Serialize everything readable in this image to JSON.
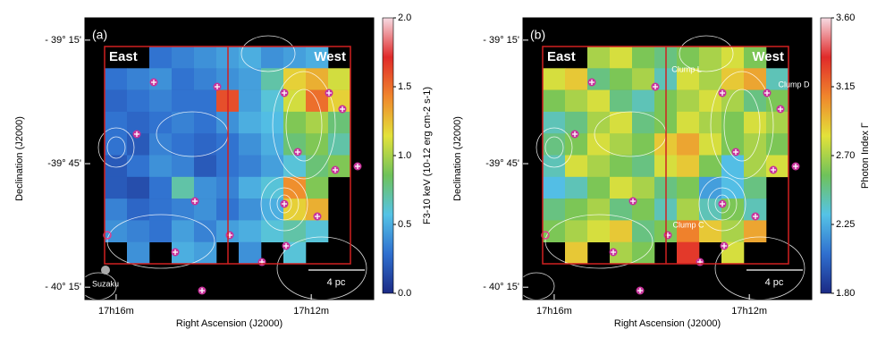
{
  "chart_data": [
    {
      "type": "heatmap",
      "panel_label": "(a)",
      "regions": [
        "East",
        "West"
      ],
      "scale_label": "4 pc",
      "annotations": [
        "Suzaku"
      ],
      "xlabel": "Right Ascension (J2000)",
      "ylabel": "Declination (J2000)",
      "colorbar_label": "F3-10 keV (10-12 erg cm-2 s-1)",
      "xlim": [
        16.64,
        10.72
      ],
      "xticks": [
        {
          "value": 16,
          "label": "17h16m"
        },
        {
          "value": 12,
          "label": "17h12m"
        }
      ],
      "ylim": [
        -39.16,
        -40.3
      ],
      "yticks": [
        {
          "value": -39.25,
          "label": "- 39° 15'"
        },
        {
          "value": -39.75,
          "label": "-39° 45'"
        },
        {
          "value": -40.25,
          "label": "- 40° 15'"
        }
      ],
      "clim": [
        0.0,
        2.0
      ],
      "cticks": [
        {
          "value": 0.0,
          "label": "0.0"
        },
        {
          "value": 0.5,
          "label": "0.5"
        },
        {
          "value": 1.0,
          "label": "1.0"
        },
        {
          "value": 1.5,
          "label": "1.5"
        },
        {
          "value": 2.0,
          "label": "2.0"
        }
      ],
      "colormap": [
        "#1b2a85",
        "#2f6fcf",
        "#55c3e6",
        "#6fc25a",
        "#e3e23a",
        "#f0862c",
        "#e02a2a",
        "#f6dbe3"
      ],
      "values": [
        [
          null,
          null,
          0.3,
          0.35,
          0.4,
          0.45,
          0.5,
          0.4,
          0.45,
          0.5,
          null
        ],
        [
          0.3,
          0.35,
          0.4,
          0.3,
          0.35,
          0.4,
          0.45,
          0.7,
          1.2,
          1.3,
          1.1
        ],
        [
          0.25,
          0.3,
          0.35,
          0.3,
          0.3,
          1.6,
          0.45,
          0.6,
          1.1,
          1.5,
          1.2
        ],
        [
          0.3,
          0.25,
          0.3,
          0.35,
          0.3,
          0.4,
          0.5,
          0.55,
          0.9,
          1.0,
          0.8
        ],
        [
          0.3,
          0.2,
          0.35,
          0.3,
          0.25,
          0.3,
          0.4,
          0.5,
          0.8,
          0.9,
          0.7
        ],
        [
          0.2,
          0.3,
          0.4,
          0.35,
          0.2,
          0.3,
          0.35,
          0.45,
          0.6,
          0.8,
          0.9
        ],
        [
          0.2,
          0.15,
          0.3,
          0.7,
          0.4,
          0.35,
          0.5,
          0.6,
          1.4,
          0.9,
          null
        ],
        [
          0.35,
          0.25,
          0.3,
          0.35,
          0.4,
          0.3,
          0.4,
          0.5,
          1.2,
          1.3,
          null
        ],
        [
          0.4,
          0.35,
          0.3,
          0.45,
          0.35,
          0.45,
          0.5,
          0.6,
          0.7,
          0.6,
          null
        ],
        [
          null,
          0.4,
          null,
          0.5,
          0.45,
          null,
          0.4,
          null,
          0.6,
          null,
          null
        ]
      ]
    },
    {
      "type": "heatmap",
      "panel_label": "(b)",
      "regions": [
        "East",
        "West"
      ],
      "scale_label": "4 pc",
      "annotations": [
        "Clump L",
        "Clump D",
        "Clump C"
      ],
      "xlabel": "Right Ascension (J2000)",
      "ylabel": "Declination (J2000)",
      "colorbar_label": "Photon Index Γ",
      "xlim": [
        16.64,
        10.72
      ],
      "xticks": [
        {
          "value": 16,
          "label": "17h16m"
        },
        {
          "value": 12,
          "label": "17h12m"
        }
      ],
      "ylim": [
        -39.16,
        -40.3
      ],
      "yticks": [
        {
          "value": -39.25,
          "label": "- 39° 15'"
        },
        {
          "value": -39.75,
          "label": "-39° 45'"
        },
        {
          "value": -40.25,
          "label": "- 40° 15'"
        }
      ],
      "clim": [
        1.8,
        3.6
      ],
      "cticks": [
        {
          "value": 1.8,
          "label": "1.80"
        },
        {
          "value": 2.25,
          "label": "2.25"
        },
        {
          "value": 2.7,
          "label": "2.70"
        },
        {
          "value": 3.15,
          "label": "3.15"
        },
        {
          "value": 3.6,
          "label": "3.60"
        }
      ],
      "colormap": [
        "#1b2a85",
        "#2f6fcf",
        "#55c3e6",
        "#6fc25a",
        "#e3e23a",
        "#f0862c",
        "#e02a2a",
        "#f6dbe3"
      ],
      "values": [
        [
          null,
          null,
          2.7,
          2.8,
          2.6,
          2.5,
          2.6,
          2.7,
          2.8,
          2.6,
          null
        ],
        [
          2.8,
          2.9,
          2.5,
          2.6,
          2.7,
          2.4,
          2.8,
          2.7,
          2.9,
          3.0,
          2.4
        ],
        [
          2.6,
          2.7,
          2.8,
          2.5,
          2.4,
          2.6,
          2.7,
          2.8,
          2.7,
          2.5,
          2.6
        ],
        [
          2.4,
          2.5,
          2.7,
          2.8,
          2.5,
          2.6,
          2.8,
          2.7,
          2.6,
          2.8,
          2.7
        ],
        [
          2.5,
          2.6,
          2.8,
          2.7,
          2.6,
          2.9,
          3.0,
          2.8,
          2.6,
          2.7,
          2.6
        ],
        [
          2.4,
          2.8,
          2.7,
          2.6,
          2.5,
          2.8,
          2.9,
          2.6,
          2.3,
          2.7,
          2.8
        ],
        [
          2.3,
          2.4,
          2.6,
          2.8,
          2.7,
          2.5,
          2.6,
          2.2,
          2.3,
          2.5,
          null
        ],
        [
          2.5,
          2.6,
          2.7,
          2.5,
          2.6,
          2.4,
          2.7,
          2.4,
          2.6,
          2.4,
          null
        ],
        [
          2.6,
          2.7,
          2.8,
          2.9,
          2.5,
          2.6,
          3.1,
          2.9,
          2.7,
          3.0,
          null
        ],
        [
          null,
          2.9,
          null,
          2.7,
          2.6,
          null,
          3.3,
          null,
          2.8,
          null,
          null
        ]
      ]
    }
  ]
}
